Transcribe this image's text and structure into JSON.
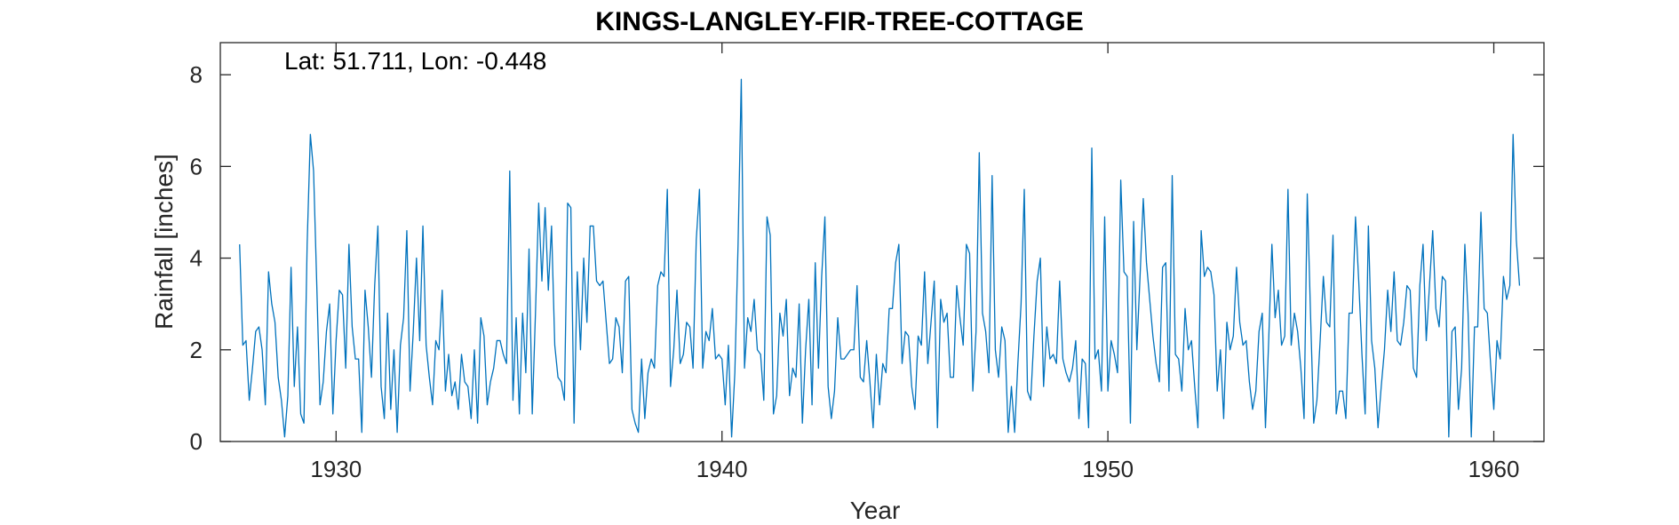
{
  "chart_data": {
    "type": "line",
    "title": "KINGS-LANGLEY-FIR-TREE-COTTAGE",
    "annotation": "Lat: 51.711, Lon: -0.448",
    "xlabel": "Year",
    "ylabel": "Rainfall [inches]",
    "xlim": [
      1927.0,
      1961.3
    ],
    "ylim": [
      0,
      8.7
    ],
    "xticks": [
      1930,
      1940,
      1950,
      1960
    ],
    "yticks": [
      0,
      2,
      4,
      6,
      8
    ],
    "grid": false,
    "series_color": "#0072BD",
    "series": [
      {
        "x_start": 1927.5,
        "x_step": 0.083333,
        "values": [
          4.3,
          2.1,
          2.2,
          0.9,
          1.6,
          2.4,
          2.5,
          2.0,
          0.8,
          3.7,
          3.0,
          2.6,
          1.4,
          0.9,
          0.1,
          1.0,
          3.8,
          1.2,
          2.5,
          0.6,
          0.4,
          4.3,
          6.7,
          5.9,
          3.4,
          0.8,
          1.3,
          2.4,
          3.0,
          0.6,
          2.2,
          3.3,
          3.2,
          1.6,
          4.3,
          2.5,
          1.8,
          1.8,
          0.2,
          3.3,
          2.5,
          1.4,
          3.4,
          4.7,
          1.2,
          0.5,
          2.8,
          0.7,
          2.0,
          0.2,
          2.1,
          2.7,
          4.6,
          1.1,
          2.4,
          4.0,
          2.2,
          4.7,
          2.1,
          1.4,
          0.8,
          2.2,
          2.0,
          3.3,
          1.1,
          1.9,
          1.0,
          1.3,
          0.7,
          1.9,
          1.3,
          1.2,
          0.5,
          2.0,
          0.4,
          2.7,
          2.3,
          0.8,
          1.3,
          1.6,
          2.2,
          2.2,
          1.9,
          1.7,
          5.9,
          0.9,
          2.7,
          0.6,
          2.8,
          1.5,
          4.2,
          0.6,
          2.8,
          5.2,
          3.5,
          5.1,
          3.3,
          4.7,
          2.1,
          1.4,
          1.3,
          0.9,
          5.2,
          5.1,
          0.4,
          3.7,
          2.0,
          4.0,
          2.6,
          4.7,
          4.7,
          3.5,
          3.4,
          3.5,
          2.6,
          1.7,
          1.8,
          2.7,
          2.5,
          1.5,
          3.5,
          3.6,
          0.7,
          0.4,
          0.2,
          1.8,
          0.5,
          1.5,
          1.8,
          1.6,
          3.4,
          3.7,
          3.6,
          5.5,
          1.2,
          2.0,
          3.3,
          1.7,
          1.9,
          2.6,
          2.5,
          1.6,
          4.4,
          5.5,
          1.6,
          2.4,
          2.2,
          2.9,
          1.8,
          1.9,
          1.8,
          0.8,
          2.1,
          0.1,
          1.5,
          4.3,
          7.9,
          1.6,
          2.7,
          2.4,
          3.1,
          2.0,
          1.9,
          0.9,
          4.9,
          4.5,
          0.6,
          1.0,
          2.8,
          2.3,
          3.1,
          1.0,
          1.6,
          1.4,
          3.0,
          0.4,
          2.0,
          3.1,
          0.8,
          3.9,
          1.6,
          3.6,
          4.9,
          1.2,
          0.5,
          1.1,
          2.7,
          1.8,
          1.8,
          1.9,
          2.0,
          2.0,
          3.4,
          1.4,
          1.3,
          2.2,
          1.3,
          0.3,
          1.9,
          0.8,
          1.7,
          1.5,
          2.9,
          2.9,
          3.9,
          4.3,
          1.7,
          2.4,
          2.3,
          1.2,
          0.7,
          2.3,
          2.1,
          3.7,
          1.7,
          2.6,
          3.5,
          0.3,
          3.1,
          2.6,
          2.8,
          1.4,
          1.4,
          3.4,
          2.7,
          2.1,
          4.3,
          4.1,
          1.1,
          2.4,
          6.3,
          2.8,
          2.4,
          1.5,
          5.8,
          2.0,
          1.4,
          2.5,
          2.2,
          0.2,
          1.2,
          0.2,
          1.7,
          3.0,
          5.5,
          1.1,
          0.9,
          2.3,
          3.5,
          4.0,
          1.2,
          2.5,
          1.8,
          1.9,
          1.7,
          3.5,
          1.8,
          1.5,
          1.3,
          1.6,
          2.2,
          0.5,
          1.8,
          1.7,
          0.3,
          6.4,
          1.8,
          2.0,
          1.1,
          4.9,
          1.1,
          2.2,
          1.9,
          1.5,
          5.7,
          3.7,
          3.6,
          0.4,
          4.8,
          2.0,
          3.6,
          5.3,
          3.9,
          3.1,
          2.3,
          1.7,
          1.3,
          3.8,
          3.9,
          1.1,
          5.8,
          1.9,
          1.8,
          1.1,
          2.9,
          2.0,
          2.2,
          1.2,
          0.3,
          4.6,
          3.6,
          3.8,
          3.7,
          3.2,
          1.1,
          2.0,
          0.5,
          2.6,
          2.0,
          2.3,
          3.8,
          2.6,
          2.1,
          2.2,
          1.3,
          0.7,
          1.1,
          2.4,
          2.8,
          0.3,
          2.2,
          4.3,
          2.7,
          3.3,
          2.1,
          2.3,
          5.5,
          2.1,
          2.8,
          2.4,
          1.6,
          0.5,
          5.4,
          2.8,
          0.4,
          0.9,
          2.2,
          3.6,
          2.6,
          2.5,
          4.5,
          0.6,
          1.1,
          1.1,
          0.5,
          2.8,
          2.8,
          4.9,
          3.5,
          1.9,
          0.6,
          4.7,
          2.2,
          1.6,
          0.3,
          1.2,
          2.0,
          3.3,
          2.4,
          3.7,
          2.2,
          2.1,
          2.6,
          3.4,
          3.3,
          1.6,
          1.4,
          3.4,
          4.3,
          2.2,
          3.4,
          4.6,
          2.9,
          2.5,
          3.6,
          3.5,
          0.1,
          2.4,
          2.5,
          0.7,
          1.6,
          4.3,
          2.8,
          0.1,
          2.5,
          2.5,
          5.0,
          2.9,
          2.8,
          1.7,
          0.7,
          2.2,
          1.8,
          3.6,
          3.1,
          3.4,
          6.7,
          4.4,
          3.4
        ]
      }
    ]
  }
}
